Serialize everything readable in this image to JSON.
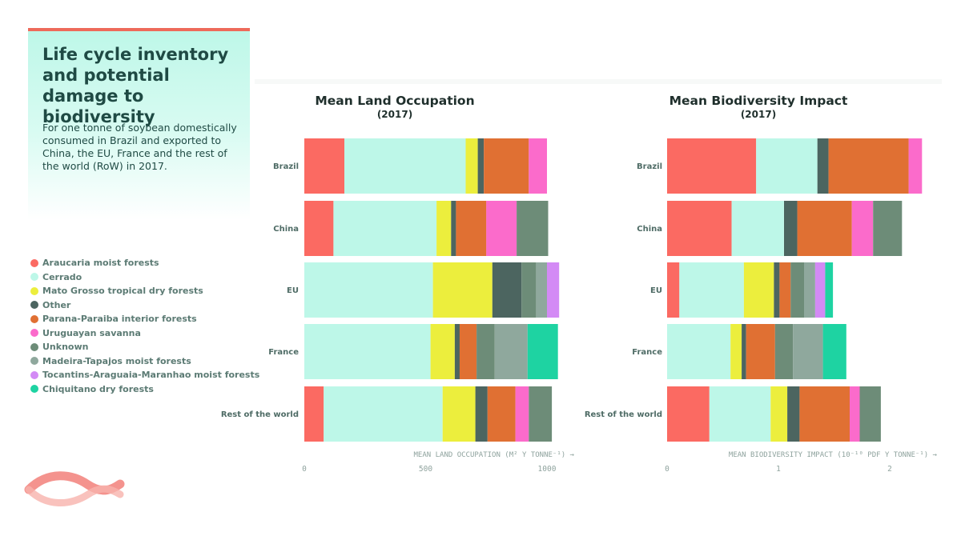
{
  "header": {
    "title": "Life cycle inventory and potential damage to biodiversity",
    "subtitle": "For one tonne of soybean domestically consumed in Brazil and exported to China, the EU, France and the rest of the world (RoW) in 2017."
  },
  "legend": [
    {
      "label": "Araucaria moist forests",
      "color": "#fb6a62"
    },
    {
      "label": "Cerrado",
      "color": "#bdf7e8"
    },
    {
      "label": "Mato Grosso tropical dry forests",
      "color": "#ecee3d"
    },
    {
      "label": "Other",
      "color": "#4c6560"
    },
    {
      "label": "Parana-Paraiba interior forests",
      "color": "#e07033"
    },
    {
      "label": "Uruguayan savanna",
      "color": "#fb6bcb"
    },
    {
      "label": "Unknown",
      "color": "#6d8c78"
    },
    {
      "label": "Madeira-Tapajos moist forests",
      "color": "#8fa89d"
    },
    {
      "label": "Tocantins-Araguaia-Maranhao moist forests",
      "color": "#d38af5"
    },
    {
      "label": "Chiquitano dry forests",
      "color": "#1ed3a2"
    }
  ],
  "chart_data": [
    {
      "type": "bar",
      "stacked": true,
      "orientation": "horizontal",
      "title": "Mean Land Occupation",
      "year": "(2017)",
      "xlabel": "MEAN LAND OCCUPATION (M² Y TONNE⁻¹) →",
      "xlim": [
        0,
        1100
      ],
      "xticks": [
        0,
        500,
        1000
      ],
      "categories": [
        "Brazil",
        "China",
        "EU",
        "France",
        "Rest of the world"
      ],
      "series": [
        {
          "name": "Araucaria moist forests",
          "values": [
            165,
            120,
            0,
            0,
            80
          ]
        },
        {
          "name": "Cerrado",
          "values": [
            500,
            425,
            530,
            520,
            490
          ]
        },
        {
          "name": "Mato Grosso tropical dry forests",
          "values": [
            50,
            60,
            245,
            100,
            135
          ]
        },
        {
          "name": "Other",
          "values": [
            25,
            20,
            120,
            20,
            50
          ]
        },
        {
          "name": "Parana-Paraiba interior forests",
          "values": [
            185,
            125,
            0,
            70,
            115
          ]
        },
        {
          "name": "Uruguayan savanna",
          "values": [
            75,
            125,
            0,
            0,
            55
          ]
        },
        {
          "name": "Unknown",
          "values": [
            0,
            130,
            60,
            75,
            95
          ]
        },
        {
          "name": "Madeira-Tapajos moist forests",
          "values": [
            0,
            0,
            45,
            135,
            0
          ]
        },
        {
          "name": "Tocantins-Araguaia-Maranhao moist forests",
          "values": [
            0,
            0,
            50,
            0,
            0
          ]
        },
        {
          "name": "Chiquitano dry forests",
          "values": [
            0,
            0,
            0,
            125,
            0
          ]
        }
      ]
    },
    {
      "type": "bar",
      "stacked": true,
      "orientation": "horizontal",
      "title": "Mean Biodiversity Impact",
      "year": "(2017)",
      "xlabel": "MEAN BIODIVERSITY IMPACT (10⁻¹⁰ PDF Y TONNE⁻¹) →",
      "xlim": [
        0,
        2.4
      ],
      "xticks": [
        0,
        1,
        2
      ],
      "categories": [
        "Brazil",
        "China",
        "EU",
        "France",
        "Rest of the world"
      ],
      "series": [
        {
          "name": "Araucaria moist forests",
          "values": [
            0.8,
            0.58,
            0.11,
            0,
            0.38
          ]
        },
        {
          "name": "Cerrado",
          "values": [
            0.55,
            0.47,
            0.58,
            0.57,
            0.55
          ]
        },
        {
          "name": "Mato Grosso tropical dry forests",
          "values": [
            0,
            0,
            0.27,
            0.1,
            0.15
          ]
        },
        {
          "name": "Other",
          "values": [
            0.1,
            0.12,
            0.05,
            0.04,
            0.11
          ]
        },
        {
          "name": "Parana-Paraiba interior forests",
          "values": [
            0.72,
            0.49,
            0.1,
            0.26,
            0.45
          ]
        },
        {
          "name": "Uruguayan savanna",
          "values": [
            0.12,
            0.19,
            0,
            0,
            0.09
          ]
        },
        {
          "name": "Unknown",
          "values": [
            0,
            0.26,
            0.12,
            0.16,
            0.19
          ]
        },
        {
          "name": "Madeira-Tapajos moist forests",
          "values": [
            0,
            0,
            0.1,
            0.27,
            0
          ]
        },
        {
          "name": "Tocantins-Araguaia-Maranhao moist forests",
          "values": [
            0,
            0,
            0.09,
            0,
            0
          ]
        },
        {
          "name": "Chiquitano dry forests",
          "values": [
            0,
            0,
            0.07,
            0.21,
            0
          ]
        }
      ]
    }
  ]
}
